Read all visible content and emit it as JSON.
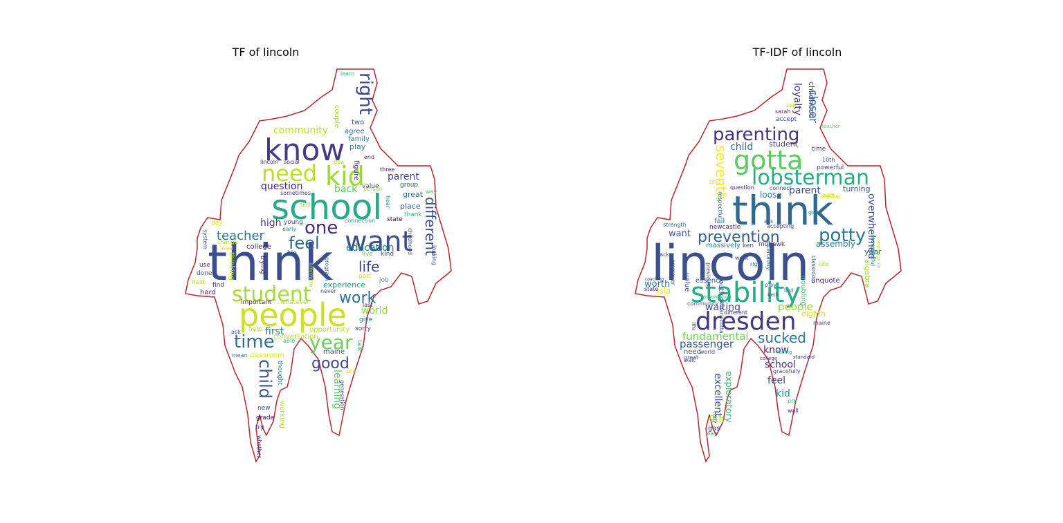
{
  "panels": [
    {
      "title": "TF of lincoln",
      "outline_color": "#b5262d",
      "words": [
        {
          "t": "think",
          "c": "#3b4d8c"
        },
        {
          "t": "school",
          "c": "#2aa98a"
        },
        {
          "t": "people",
          "c": "#cde11d"
        },
        {
          "t": "know",
          "c": "#433b86"
        },
        {
          "t": "want",
          "c": "#3c4f8a"
        },
        {
          "t": "kid",
          "c": "#9ad93c"
        },
        {
          "t": "need",
          "c": "#bddf26"
        },
        {
          "t": "student",
          "c": "#a7d93a"
        },
        {
          "t": "year",
          "c": "#6cce59"
        },
        {
          "t": "time",
          "c": "#2e6d8e"
        },
        {
          "t": "right",
          "c": "#3f4789"
        },
        {
          "t": "one",
          "c": "#472a7a"
        },
        {
          "t": "feel",
          "c": "#31688e"
        },
        {
          "t": "work",
          "c": "#2d708e"
        },
        {
          "t": "good",
          "c": "#3e4989"
        },
        {
          "t": "child",
          "c": "#3b538b"
        },
        {
          "t": "life",
          "c": "#3f4788"
        },
        {
          "t": "different",
          "c": "#3d4e8a"
        },
        {
          "t": "teacher",
          "c": "#2c738e"
        },
        {
          "t": "education",
          "c": "#26828e"
        },
        {
          "t": "community",
          "c": "#bade28"
        },
        {
          "t": "question",
          "c": "#482173"
        },
        {
          "t": "parent",
          "c": "#414487"
        },
        {
          "t": "back",
          "c": "#5cc863"
        },
        {
          "t": "high",
          "c": "#433e85"
        },
        {
          "t": "world",
          "c": "#8fd744"
        },
        {
          "t": "first",
          "c": "#2a788e"
        },
        {
          "t": "learning",
          "c": "#5ec962"
        },
        {
          "t": "great",
          "c": "#2d708e"
        },
        {
          "t": "place",
          "c": "#355f8d"
        },
        {
          "t": "experience",
          "c": "#20928c"
        },
        {
          "t": "play",
          "c": "#2f6c8e"
        },
        {
          "t": "figure",
          "c": "#482576"
        },
        {
          "t": "college",
          "c": "#481f70"
        },
        {
          "t": "opportunity",
          "c": "#b5de2b"
        },
        {
          "t": "conversation",
          "c": "#b8de29"
        },
        {
          "t": "classroom",
          "c": "#e2e418"
        },
        {
          "t": "couple",
          "c": "#9fda3a"
        },
        {
          "t": "two",
          "c": "#3e4a89"
        },
        {
          "t": "agree",
          "c": "#31688e"
        },
        {
          "t": "family",
          "c": "#2c718e"
        },
        {
          "t": "end",
          "c": "#481d6f"
        },
        {
          "t": "lincoln",
          "c": "#481b6d"
        },
        {
          "t": "social",
          "c": "#482475"
        },
        {
          "t": "idea",
          "c": "#b2dd2d"
        },
        {
          "t": "three",
          "c": "#481467"
        },
        {
          "t": "group",
          "c": "#38588c"
        },
        {
          "t": "value",
          "c": "#443a83"
        },
        {
          "t": "sometimes",
          "c": "#46327e"
        },
        {
          "t": "skill",
          "c": "#9bd93c"
        },
        {
          "t": "person",
          "c": "#9dd93b"
        },
        {
          "t": "way",
          "c": "#52c569"
        },
        {
          "t": "hear",
          "c": "#25848e"
        },
        {
          "t": "thank",
          "c": "#3fbc73"
        },
        {
          "t": "state",
          "c": "#440154"
        },
        {
          "t": "young",
          "c": "#3c4f8a"
        },
        {
          "t": "connection",
          "c": "#22a884"
        },
        {
          "t": "childhood",
          "c": "#39568c"
        },
        {
          "t": "early",
          "c": "#2c728e"
        },
        {
          "t": "day",
          "c": "#e5e419"
        },
        {
          "t": "change",
          "c": "#c2df23"
        },
        {
          "t": "level",
          "c": "#e7e419"
        },
        {
          "t": "system",
          "c": "#3a538b"
        },
        {
          "t": "big",
          "c": "#3e4a89"
        },
        {
          "t": "kind",
          "c": "#3f4889"
        },
        {
          "t": "live",
          "c": "#6ccd5a"
        },
        {
          "t": "part",
          "c": "#d2e21b"
        },
        {
          "t": "job",
          "c": "#29af7f"
        },
        {
          "t": "use",
          "c": "#46307e"
        },
        {
          "t": "done",
          "c": "#3b528b"
        },
        {
          "t": "thinking",
          "c": "#c8e020"
        },
        {
          "t": "trying",
          "c": "#440154"
        },
        {
          "t": "anymore",
          "c": "#a2da37"
        },
        {
          "t": "program",
          "c": "#30698e"
        },
        {
          "t": "looking",
          "c": "#3b528b"
        },
        {
          "t": "next",
          "c": "#b0dd2f"
        },
        {
          "t": "find",
          "c": "#433d84"
        },
        {
          "t": "hard",
          "c": "#482173"
        },
        {
          "t": "important",
          "c": "#471365"
        },
        {
          "t": "whatever",
          "c": "#b0dd2f"
        },
        {
          "t": "never",
          "c": "#3b528b"
        },
        {
          "t": "last",
          "c": "#481f70"
        },
        {
          "t": "give",
          "c": "#2a788e"
        },
        {
          "t": "sorry",
          "c": "#453781"
        },
        {
          "t": "ask",
          "c": "#3e4c8a"
        },
        {
          "t": "help",
          "c": "#b5de2b"
        },
        {
          "t": "able",
          "c": "#3bbb75"
        },
        {
          "t": "talk",
          "c": "#3fbc73"
        },
        {
          "t": "maine",
          "c": "#3e4a89"
        },
        {
          "t": "pre",
          "c": "#d8e219"
        },
        {
          "t": "mean",
          "c": "#31688e"
        },
        {
          "t": "thought",
          "c": "#2d708e"
        },
        {
          "t": "generation",
          "c": "#3f4788"
        },
        {
          "t": "new",
          "c": "#3e4a89"
        },
        {
          "t": "working",
          "c": "#bade28"
        },
        {
          "t": "grade",
          "c": "#440154"
        },
        {
          "t": "try",
          "c": "#482475"
        },
        {
          "t": "whether",
          "c": "#481467"
        },
        {
          "t": "learn",
          "c": "#3aba76"
        }
      ]
    },
    {
      "title": "TF-IDF of lincoln",
      "outline_color": "#b5262d",
      "words": [
        {
          "t": "lincoln",
          "c": "#3c508b"
        },
        {
          "t": "think",
          "c": "#31688e"
        },
        {
          "t": "stability",
          "c": "#25ac82"
        },
        {
          "t": "dresden",
          "c": "#443983"
        },
        {
          "t": "gotta",
          "c": "#5ec962"
        },
        {
          "t": "lobsterman",
          "c": "#27ad81"
        },
        {
          "t": "parenting",
          "c": "#46337f"
        },
        {
          "t": "prevention",
          "c": "#34618d"
        },
        {
          "t": "potty",
          "c": "#2a788e"
        },
        {
          "t": "seventh",
          "c": "#fde725"
        },
        {
          "t": "closer",
          "c": "#2e6f8e"
        },
        {
          "t": "loyalty",
          "c": "#453781"
        },
        {
          "t": "childhood",
          "c": "#3e4a89"
        },
        {
          "t": "child",
          "c": "#31688e"
        },
        {
          "t": "student",
          "c": "#433e85"
        },
        {
          "t": "overwhelmed",
          "c": "#3c4f8a"
        },
        {
          "t": "parent",
          "c": "#3f4889"
        },
        {
          "t": "loose",
          "c": "#29798e"
        },
        {
          "t": "turning",
          "c": "#39568c"
        },
        {
          "t": "sucked",
          "c": "#2a788e"
        },
        {
          "t": "fundamental",
          "c": "#6ece58"
        },
        {
          "t": "passenger",
          "c": "#38598c"
        },
        {
          "t": "people",
          "c": "#95d840"
        },
        {
          "t": "worth",
          "c": "#2a788e"
        },
        {
          "t": "waiting",
          "c": "#3e4989"
        },
        {
          "t": "know",
          "c": "#481f70"
        },
        {
          "t": "school",
          "c": "#46327e"
        },
        {
          "t": "feel",
          "c": "#443a83"
        },
        {
          "t": "kid",
          "c": "#21908d"
        },
        {
          "t": "excellent",
          "c": "#3e4a89"
        },
        {
          "t": "exploratory",
          "c": "#3bbb75"
        },
        {
          "t": "9th",
          "c": "#a8db34"
        },
        {
          "t": "want",
          "c": "#3b528b"
        },
        {
          "t": "assembly",
          "c": "#2c738e"
        },
        {
          "t": "year",
          "c": "#31688e"
        },
        {
          "t": "algebra",
          "c": "#9dd93b"
        },
        {
          "t": "eighth",
          "c": "#d0e11c"
        },
        {
          "t": "unquote",
          "c": "#481b6d"
        },
        {
          "t": "troubling",
          "c": "#3bbb75"
        },
        {
          "t": "south",
          "c": "#33638d"
        },
        {
          "t": "essence",
          "c": "#3b528b"
        },
        {
          "t": "isla",
          "c": "#f1e51d"
        },
        {
          "t": "value",
          "c": "#38588c"
        },
        {
          "t": "work",
          "c": "#3c4f8a"
        },
        {
          "t": "fail",
          "c": "#2c738e"
        },
        {
          "t": "newcastle",
          "c": "#482173"
        },
        {
          "t": "massively",
          "c": "#2a788e"
        },
        {
          "t": "ken",
          "c": "#3e4a89"
        },
        {
          "t": "mohawk",
          "c": "#472d7b"
        },
        {
          "t": "right",
          "c": "#31688e"
        },
        {
          "t": "site",
          "c": "#9bd93c"
        },
        {
          "t": "one",
          "c": "#e7e419"
        },
        {
          "t": "question",
          "c": "#481769"
        },
        {
          "t": "connect",
          "c": "#3e4989"
        },
        {
          "t": "path",
          "c": "#c5e021"
        },
        {
          "t": "coastal",
          "c": "#e5e419"
        },
        {
          "t": "good",
          "c": "#2a788e"
        },
        {
          "t": "meaningful",
          "c": "#24878e"
        },
        {
          "t": "compassionate",
          "c": "#9fda3a"
        },
        {
          "t": "accepting",
          "c": "#433e85"
        },
        {
          "t": "dark",
          "c": "#3e4c8a"
        },
        {
          "t": "strength",
          "c": "#2c718e"
        },
        {
          "t": "employer",
          "c": "#3e4989"
        },
        {
          "t": "back",
          "c": "#3b528b"
        },
        {
          "t": "coaching",
          "c": "#482878"
        },
        {
          "t": "state",
          "c": "#482475"
        },
        {
          "t": "community",
          "c": "#38588c"
        },
        {
          "t": "play",
          "c": "#31688e"
        },
        {
          "t": "bird",
          "c": "#2c728e"
        },
        {
          "t": "beth",
          "c": "#3e4a89"
        },
        {
          "t": "classroom",
          "c": "#35608d"
        },
        {
          "t": "different",
          "c": "#46307e"
        },
        {
          "t": "maine",
          "c": "#433e85"
        },
        {
          "t": "need",
          "c": "#3b528b"
        },
        {
          "t": "world",
          "c": "#3e4989"
        },
        {
          "t": "great",
          "c": "#3e4a89"
        },
        {
          "t": "failing",
          "c": "#2ab07f"
        },
        {
          "t": "standard",
          "c": "#46307e"
        },
        {
          "t": "college",
          "c": "#472d7b"
        },
        {
          "t": "gracefully",
          "c": "#3f4889"
        },
        {
          "t": "pre",
          "c": "#3bbb75"
        },
        {
          "t": "wall",
          "c": "#482173"
        },
        {
          "t": "early",
          "c": "#2c718e"
        },
        {
          "t": "gas",
          "c": "#443983"
        },
        {
          "t": "way",
          "c": "#2ab07f"
        },
        {
          "t": "life",
          "c": "#3e4a89"
        },
        {
          "t": "wait",
          "c": "#3e4989"
        },
        {
          "t": "respectful",
          "c": "#30698e"
        },
        {
          "t": "uncertainty",
          "c": "#30698e"
        },
        {
          "t": "previous",
          "c": "#3e4c8a"
        },
        {
          "t": "damariscotta",
          "c": "#3e4c8a"
        },
        {
          "t": "assumption",
          "c": "#3bbb75"
        },
        {
          "t": "accept",
          "c": "#3b528b"
        },
        {
          "t": "teacher",
          "c": "#5ec962"
        },
        {
          "t": "time",
          "c": "#3e4a89"
        },
        {
          "t": "10th",
          "c": "#3e4989"
        },
        {
          "t": "powerful",
          "c": "#443983"
        },
        {
          "t": "sarah",
          "c": "#481f70"
        },
        {
          "t": "use",
          "c": "#bddf26"
        }
      ]
    }
  ]
}
